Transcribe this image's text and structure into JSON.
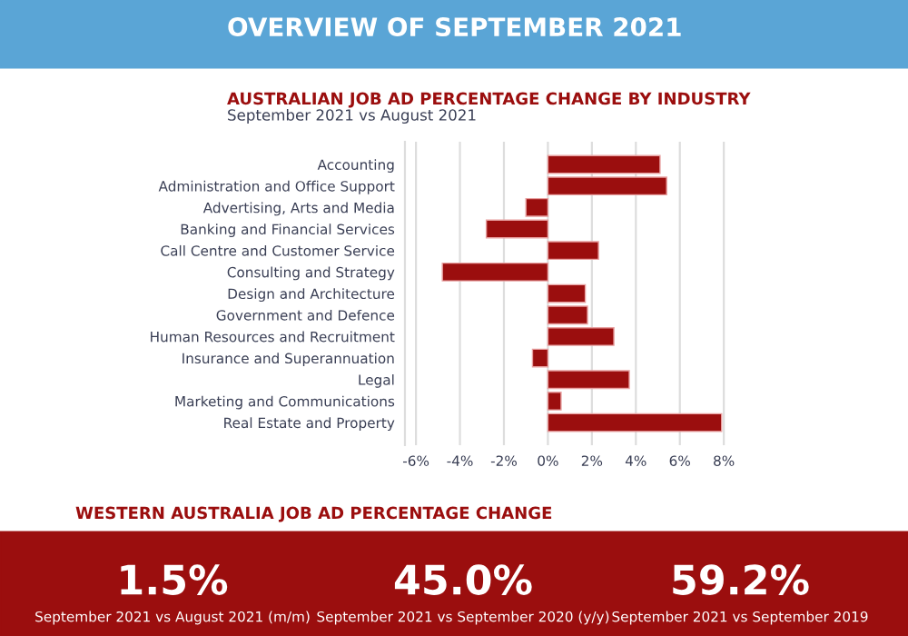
{
  "chart_data": {
    "type": "bar",
    "orientation": "horizontal",
    "title": "AUSTRALIAN JOB AD PERCENTAGE CHANGE BY INDUSTRY",
    "subtitle": "September 2021 vs August 2021",
    "categories": [
      "Accounting",
      "Administration and Office Support",
      "Advertising, Arts and Media",
      "Banking and Financial Services",
      "Call Centre and Customer Service",
      "Consulting and Strategy",
      "Design and Architecture",
      "Government and Defence",
      "Human Resources and Recruitment",
      "Insurance and Superannuation",
      "Legal",
      "Marketing and Communications",
      "Real Estate and Property"
    ],
    "values": [
      5.1,
      5.4,
      -1.0,
      -2.8,
      2.3,
      -4.8,
      1.7,
      1.8,
      3.0,
      -0.7,
      3.7,
      0.6,
      7.9
    ],
    "color": "#9b0e0e",
    "xlim": [
      -6.5,
      8.2
    ],
    "xticks": [
      {
        "value": -6,
        "label": "-6%"
      },
      {
        "value": -4,
        "label": "-4%"
      },
      {
        "value": -2,
        "label": "-2%"
      },
      {
        "value": 0,
        "label": "0%"
      },
      {
        "value": 2,
        "label": "2%"
      },
      {
        "value": 4,
        "label": "4%"
      },
      {
        "value": 6,
        "label": "6%"
      },
      {
        "value": 8,
        "label": "8%"
      }
    ],
    "grid": "x",
    "annotations": [
      "OVERVIEW OF SEPTEMBER 2021",
      "WESTERN AUSTRALIA JOB AD PERCENTAGE CHANGE",
      "1.5%",
      "September 2021 vs August 2021 (m/m)",
      "45.0%",
      "September 2021 vs September 2020 (y/y)",
      "59.2%",
      "September 2021 vs September 2019"
    ]
  }
}
